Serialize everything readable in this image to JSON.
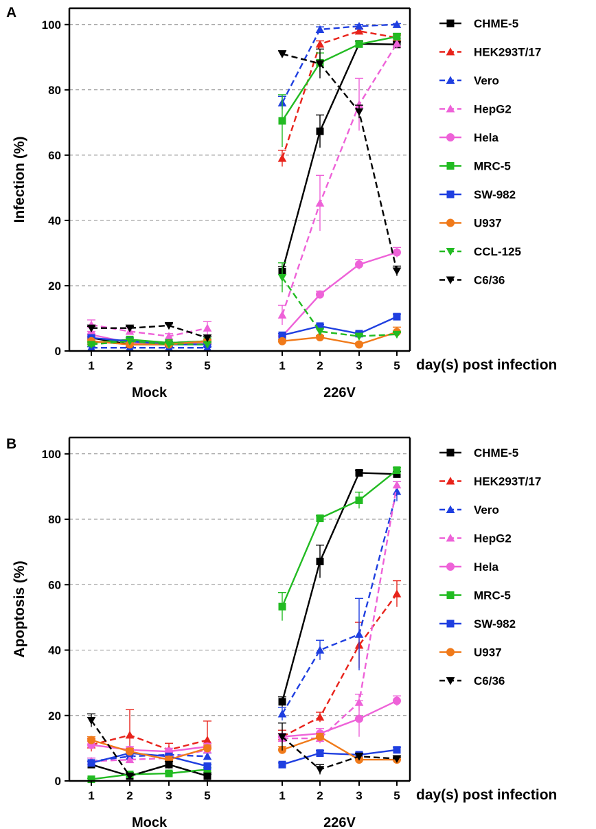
{
  "chart_data": [
    {
      "type": "line",
      "panel_label": "A",
      "ylabel": "Infection (%)",
      "xlabel": "day(s) post infection",
      "ylim": [
        0,
        105
      ],
      "yticks": [
        0,
        20,
        40,
        60,
        80,
        100
      ],
      "grid": "horizontal dashed",
      "legend_position": "right",
      "groups": [
        {
          "label": "Mock",
          "days": [
            "1",
            "2",
            "3",
            "5"
          ]
        },
        {
          "label": "226V",
          "days": [
            "1",
            "2",
            "3",
            "5"
          ]
        }
      ],
      "series": [
        {
          "name": "CHME-5",
          "color": "#000000",
          "marker": "square",
          "dashed": false,
          "mock": [
            4,
            2,
            2,
            3
          ],
          "infected": [
            24.3,
            67.3,
            94.1,
            93.9
          ],
          "mock_err": [
            1,
            0.5,
            0.5,
            0.5
          ],
          "infected_err": [
            1.5,
            5,
            0.8,
            0.8
          ]
        },
        {
          "name": "HEK293T/17",
          "color": "#e8231b",
          "marker": "triangle",
          "dashed": true,
          "mock": [
            3,
            2,
            2.5,
            3
          ],
          "infected": [
            59,
            94,
            98,
            96
          ],
          "mock_err": [
            1,
            0.5,
            0.5,
            0.5
          ],
          "infected_err": [
            2.5,
            1,
            0.8,
            0.8
          ]
        },
        {
          "name": "Vero",
          "color": "#1f3fe0",
          "marker": "triangle",
          "dashed": true,
          "mock": [
            1,
            1,
            1,
            1
          ],
          "infected": [
            76,
            98.5,
            99.5,
            100
          ],
          "mock_err": [
            0.3,
            0.3,
            0.3,
            0.3
          ],
          "infected_err": [
            2,
            0.8,
            0.5,
            0.3
          ]
        },
        {
          "name": "HepG2",
          "color": "#ee62d8",
          "marker": "triangle",
          "dashed": true,
          "mock": [
            8,
            6,
            4.5,
            7
          ],
          "infected": [
            11,
            45.3,
            75.5,
            94.2
          ],
          "mock_err": [
            1.5,
            1,
            0.8,
            2
          ],
          "infected_err": [
            3,
            8.5,
            8,
            1.5
          ]
        },
        {
          "name": "Hela",
          "color": "#ee62d8",
          "marker": "circle",
          "dashed": false,
          "mock": [
            5,
            2.5,
            2,
            2.5
          ],
          "infected": [
            4.5,
            17.3,
            26.5,
            30.2
          ],
          "mock_err": [
            1,
            0.5,
            0.5,
            0.5
          ],
          "infected_err": [
            0.8,
            1,
            1.5,
            1.5
          ]
        },
        {
          "name": "MRC-5",
          "color": "#22bb22",
          "marker": "square",
          "dashed": false,
          "mock": [
            2.5,
            3.5,
            2.5,
            3
          ],
          "infected": [
            70.5,
            88.3,
            94,
            96.3
          ],
          "mock_err": [
            0.5,
            0.5,
            0.5,
            0.5
          ],
          "infected_err": [
            8,
            3,
            1,
            1
          ]
        },
        {
          "name": "SW-982",
          "color": "#1f3fe0",
          "marker": "square",
          "dashed": false,
          "mock": [
            4,
            3,
            2,
            2
          ],
          "infected": [
            4.8,
            7.6,
            5.3,
            10.5
          ],
          "mock_err": [
            0.5,
            0.5,
            0.5,
            0.5
          ],
          "infected_err": [
            0.5,
            0.5,
            0.5,
            0.8
          ]
        },
        {
          "name": "U937",
          "color": "#f07a1a",
          "marker": "circle",
          "dashed": false,
          "mock": [
            3,
            2,
            2,
            3
          ],
          "infected": [
            3,
            4.2,
            2,
            5.8
          ],
          "mock_err": [
            0.5,
            0.5,
            0.5,
            0.5
          ],
          "infected_err": [
            0.5,
            0.5,
            0.5,
            1.5
          ]
        },
        {
          "name": "CCL-125",
          "color": "#22bb22",
          "marker": "triangle-down",
          "dashed": true,
          "mock": [
            2,
            3,
            2,
            2
          ],
          "infected": [
            22.5,
            6,
            4.5,
            5.1
          ],
          "mock_err": [
            0.5,
            0.5,
            0.5,
            0.5
          ],
          "infected_err": [
            4.5,
            1,
            0.5,
            0.5
          ]
        },
        {
          "name": "C6/36",
          "color": "#000000",
          "marker": "triangle-down",
          "dashed": true,
          "mock": [
            7,
            7,
            7.8,
            4
          ],
          "infected": [
            91,
            88,
            73.3,
            24.5
          ],
          "mock_err": [
            0.5,
            0.5,
            0.5,
            0.5
          ],
          "infected_err": [
            1,
            4.5,
            2,
            1.5
          ]
        }
      ]
    },
    {
      "type": "line",
      "panel_label": "B",
      "ylabel": "Apoptosis (%)",
      "xlabel": "day(s) post infection",
      "ylim": [
        0,
        105
      ],
      "yticks": [
        0,
        20,
        40,
        60,
        80,
        100
      ],
      "grid": "horizontal dashed",
      "legend_position": "right",
      "groups": [
        {
          "label": "Mock",
          "days": [
            "1",
            "2",
            "3",
            "5"
          ]
        },
        {
          "label": "226V",
          "days": [
            "1",
            "2",
            "3",
            "5"
          ]
        }
      ],
      "series": [
        {
          "name": "CHME-5",
          "color": "#000000",
          "marker": "square",
          "dashed": false,
          "mock": [
            5,
            1.5,
            5,
            1.5
          ],
          "infected": [
            24.2,
            67.1,
            94.2,
            93.8
          ],
          "mock_err": [
            1,
            0.5,
            1,
            0.5
          ],
          "infected_err": [
            1.5,
            5,
            0.8,
            0.8
          ]
        },
        {
          "name": "HEK293T/17",
          "color": "#e8231b",
          "marker": "triangle",
          "dashed": true,
          "mock": [
            11,
            14,
            9.5,
            12.5
          ],
          "infected": [
            13.5,
            19.5,
            41.5,
            57.2
          ],
          "mock_err": [
            2,
            7.8,
            2,
            5.8
          ],
          "infected_err": [
            2,
            1.5,
            7,
            4
          ]
        },
        {
          "name": "Vero",
          "color": "#1f3fe0",
          "marker": "triangle",
          "dashed": true,
          "mock": [
            6,
            7.5,
            8,
            7.5
          ],
          "infected": [
            20.5,
            40,
            44.8,
            88.5
          ],
          "mock_err": [
            1,
            1,
            1,
            1
          ],
          "infected_err": [
            2,
            3,
            11,
            3
          ]
        },
        {
          "name": "HepG2",
          "color": "#ee62d8",
          "marker": "triangle",
          "dashed": true,
          "mock": [
            6,
            6.5,
            7,
            9.5
          ],
          "infected": [
            13,
            13,
            24,
            90.5
          ],
          "mock_err": [
            1,
            1,
            1,
            1
          ],
          "infected_err": [
            1.5,
            1.5,
            2.5,
            1
          ]
        },
        {
          "name": "Hela",
          "color": "#ee62d8",
          "marker": "circle",
          "dashed": false,
          "mock": [
            11,
            9.5,
            9,
            10.5
          ],
          "infected": [
            13.5,
            14.5,
            19,
            24.5
          ],
          "mock_err": [
            1,
            1,
            1,
            1
          ],
          "infected_err": [
            1,
            1.5,
            5.5,
            1.5
          ]
        },
        {
          "name": "MRC-5",
          "color": "#22bb22",
          "marker": "square",
          "dashed": false,
          "mock": [
            0.5,
            2,
            2.3,
            3.5
          ],
          "infected": [
            53.3,
            80.3,
            85.8,
            95
          ],
          "mock_err": [
            0.3,
            0.5,
            0.5,
            0.5
          ],
          "infected_err": [
            4.3,
            0.8,
            2.5,
            0.8
          ]
        },
        {
          "name": "SW-982",
          "color": "#1f3fe0",
          "marker": "square",
          "dashed": false,
          "mock": [
            5.5,
            8.5,
            7.5,
            4.5
          ],
          "infected": [
            5,
            8.5,
            8,
            9.5
          ],
          "mock_err": [
            0.5,
            0.5,
            0.5,
            0.5
          ],
          "infected_err": [
            0.5,
            0.8,
            0.5,
            0.8
          ]
        },
        {
          "name": "U937",
          "color": "#f07a1a",
          "marker": "circle",
          "dashed": false,
          "mock": [
            12.5,
            9,
            6.5,
            10
          ],
          "infected": [
            9.5,
            13.5,
            6.5,
            6.5
          ],
          "mock_err": [
            1,
            1,
            1,
            1
          ],
          "infected_err": [
            1,
            1,
            0.8,
            0.8
          ]
        },
        {
          "name": "C6/36",
          "color": "#000000",
          "marker": "triangle-down",
          "dashed": true,
          "mock": [
            18.5,
            1.5,
            5,
            1.5
          ],
          "infected": [
            13.5,
            3.5,
            7.5,
            6.8
          ],
          "mock_err": [
            2,
            0.5,
            1,
            0.5
          ],
          "infected_err": [
            4.2,
            1.5,
            1,
            0.5
          ]
        }
      ]
    }
  ]
}
